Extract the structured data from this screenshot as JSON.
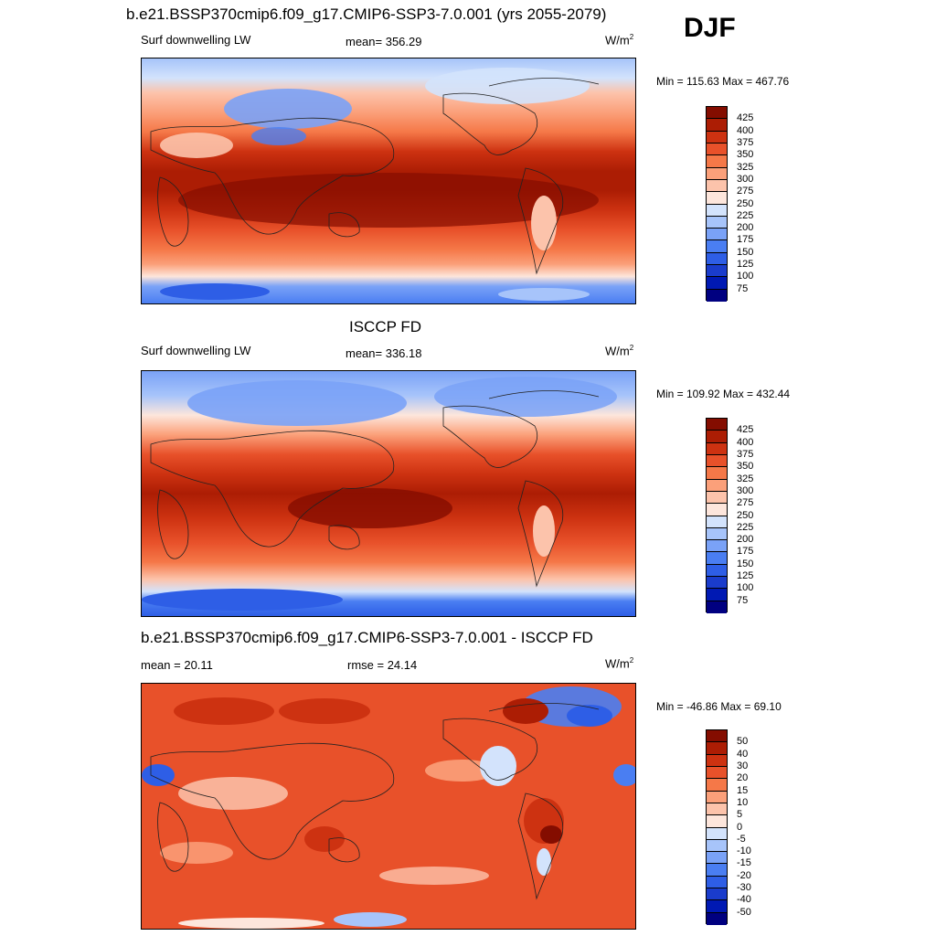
{
  "header": {
    "title": "b.e21.BSSP370cmip6.f09_g17.CMIP6-SSP3-7.0.001 (yrs 2055-2079)",
    "season": "DJF"
  },
  "panels": [
    {
      "variable": "Surf downwelling LW",
      "stat": "mean= 356.29",
      "units": "W/m",
      "units_exp": "2",
      "minmax": "Min = 115.63 Max = 467.76",
      "levels": [
        "425",
        "400",
        "375",
        "350",
        "325",
        "300",
        "275",
        "250",
        "225",
        "200",
        "175",
        "150",
        "125",
        "100",
        "75"
      ]
    },
    {
      "title": "ISCCP FD",
      "variable": "Surf downwelling LW",
      "stat": "mean= 336.18",
      "units": "W/m",
      "units_exp": "2",
      "minmax": "Min = 109.92 Max = 432.44",
      "levels": [
        "425",
        "400",
        "375",
        "350",
        "325",
        "300",
        "275",
        "250",
        "225",
        "200",
        "175",
        "150",
        "125",
        "100",
        "75"
      ]
    },
    {
      "title": "b.e21.BSSP370cmip6.f09_g17.CMIP6-SSP3-7.0.001 - ISCCP FD",
      "stat_left": "mean =  20.11",
      "stat": "rmse =  24.14",
      "units": "W/m",
      "units_exp": "2",
      "minmax": "Min = -46.86 Max =  69.10",
      "levels": [
        "50",
        "40",
        "30",
        "20",
        "15",
        "10",
        "5",
        "0",
        "-5",
        "-10",
        "-15",
        "-20",
        "-30",
        "-40",
        "-50"
      ]
    }
  ],
  "colors": {
    "scale": [
      "#000080",
      "#0019b3",
      "#1a3ccc",
      "#2e5ee6",
      "#4a7ef2",
      "#7aa2f7",
      "#a7c4fa",
      "#d3e3fc",
      "#fde6dc",
      "#fcc3ab",
      "#fba07a",
      "#f57848",
      "#e8512a",
      "#cd3211",
      "#ac1d04",
      "#840d00"
    ]
  }
}
